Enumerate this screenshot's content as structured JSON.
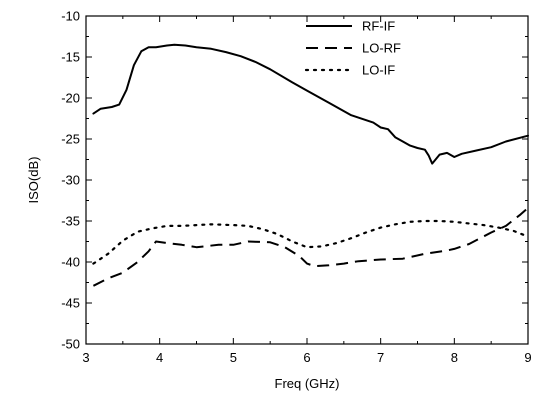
{
  "chart_data": {
    "type": "line",
    "title": "",
    "xlabel": "Freq (GHz)",
    "ylabel": "ISO(dB)",
    "xlim": [
      3,
      9
    ],
    "ylim": [
      -50,
      -10
    ],
    "xticks": [
      "3",
      "4",
      "5",
      "6",
      "7",
      "8",
      "9"
    ],
    "yticks": [
      "-10",
      "-15",
      "-20",
      "-25",
      "-30",
      "-35",
      "-40",
      "-45",
      "-50"
    ],
    "grid": false,
    "legend_position": "top-right",
    "series": [
      {
        "name": "RF-IF",
        "style": "solid",
        "color": "#000000",
        "x": [
          3.1,
          3.2,
          3.35,
          3.45,
          3.55,
          3.65,
          3.75,
          3.85,
          3.95,
          4.1,
          4.2,
          4.35,
          4.5,
          4.7,
          4.9,
          5.1,
          5.3,
          5.5,
          5.8,
          6.0,
          6.3,
          6.6,
          6.9,
          7.0,
          7.1,
          7.2,
          7.3,
          7.4,
          7.5,
          7.6,
          7.65,
          7.7,
          7.8,
          7.9,
          8.0,
          8.1,
          8.3,
          8.5,
          8.7,
          9.0
        ],
        "y": [
          -21.9,
          -21.3,
          -21.1,
          -20.8,
          -19.0,
          -16.0,
          -14.3,
          -13.8,
          -13.8,
          -13.6,
          -13.5,
          -13.6,
          -13.8,
          -14.0,
          -14.4,
          -14.9,
          -15.6,
          -16.5,
          -18.1,
          -19.1,
          -20.6,
          -22.1,
          -23.0,
          -23.6,
          -23.8,
          -24.8,
          -25.3,
          -25.8,
          -26.1,
          -26.3,
          -27.0,
          -28.0,
          -26.9,
          -26.7,
          -27.2,
          -26.8,
          -26.4,
          -26.0,
          -25.3,
          -24.6
        ]
      },
      {
        "name": "LO-RF",
        "style": "dashed",
        "color": "#000000",
        "x": [
          3.1,
          3.3,
          3.5,
          3.7,
          3.85,
          3.95,
          4.1,
          4.3,
          4.5,
          4.8,
          5.0,
          5.2,
          5.5,
          5.7,
          5.9,
          6.0,
          6.1,
          6.3,
          6.5,
          6.7,
          7.0,
          7.3,
          7.6,
          7.9,
          8.0,
          8.2,
          8.5,
          8.7,
          8.9,
          9.0
        ],
        "y": [
          -42.9,
          -42.0,
          -41.3,
          -40.0,
          -38.7,
          -37.5,
          -37.7,
          -37.9,
          -38.2,
          -37.9,
          -37.9,
          -37.5,
          -37.6,
          -38.2,
          -39.3,
          -40.2,
          -40.5,
          -40.4,
          -40.2,
          -39.9,
          -39.7,
          -39.6,
          -39.0,
          -38.6,
          -38.4,
          -37.8,
          -36.4,
          -35.6,
          -34.2,
          -33.4
        ]
      },
      {
        "name": "LO-IF",
        "style": "dotted",
        "color": "#000000",
        "x": [
          3.1,
          3.3,
          3.5,
          3.7,
          3.9,
          4.1,
          4.3,
          4.5,
          4.7,
          5.0,
          5.2,
          5.4,
          5.6,
          5.8,
          6.0,
          6.2,
          6.4,
          6.6,
          6.8,
          7.0,
          7.2,
          7.4,
          7.6,
          7.8,
          8.0,
          8.2,
          8.4,
          8.6,
          8.8,
          9.0
        ],
        "y": [
          -40.2,
          -39.0,
          -37.4,
          -36.3,
          -35.9,
          -35.6,
          -35.6,
          -35.5,
          -35.4,
          -35.5,
          -35.6,
          -36.0,
          -36.6,
          -37.5,
          -38.2,
          -38.1,
          -37.7,
          -37.1,
          -36.4,
          -35.8,
          -35.4,
          -35.1,
          -35.0,
          -35.0,
          -35.1,
          -35.3,
          -35.5,
          -35.8,
          -36.2,
          -36.9
        ]
      }
    ]
  }
}
